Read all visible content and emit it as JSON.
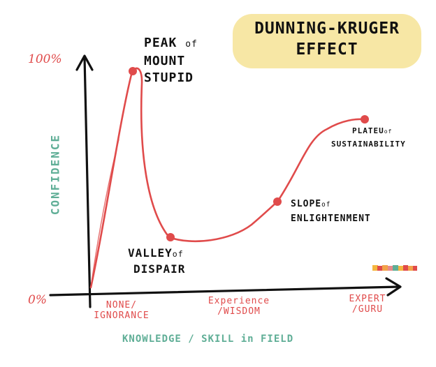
{
  "title": {
    "line1": "DUNNING-KRUGER",
    "line2": "EFFECT"
  },
  "axes": {
    "y_label": "CONFIDENCE",
    "x_label": "KNOWLEDGE / SKILL in FIELD",
    "y_top_tick": "100%",
    "y_bottom_tick": "0%",
    "x_ticks": {
      "none": {
        "line1": "NONE/",
        "line2": "IGNORANCE"
      },
      "experience": {
        "line1": "Experience",
        "line2": "/WISDOM"
      },
      "expert": {
        "line1": "EXPERT",
        "line2": "/GURU"
      }
    }
  },
  "stages": {
    "peak": {
      "line1_main": "PEAK",
      "line1_small": "of",
      "line2": "MOUNT",
      "line3": "STUPID"
    },
    "valley": {
      "line1_main": "VALLEY",
      "line1_small": "of",
      "line2": "DISPAIR"
    },
    "slope": {
      "line1_main": "SLOPE",
      "line1_small": "of",
      "line2": "ENLIGHTENMENT"
    },
    "plateau": {
      "line1_main": "PLATEU",
      "line1_small": "of",
      "line2": "SUSTAINABILITY"
    }
  },
  "colors": {
    "curve": "#e04b4b",
    "axis": "#111111",
    "axis_label": "#5fae96",
    "title_background": "#f7e7a5"
  }
}
